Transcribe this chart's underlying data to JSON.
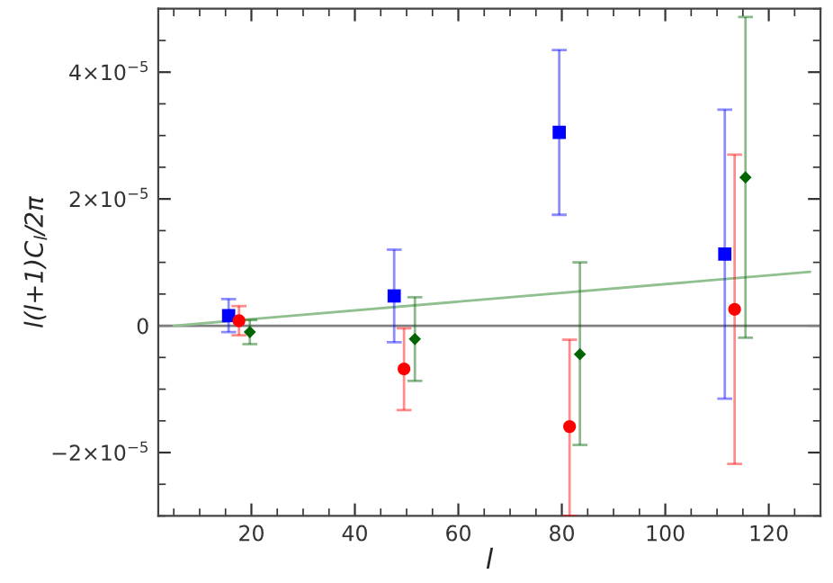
{
  "chart_data": {
    "type": "scatter",
    "xlabel": "l",
    "ylabel": "l(l+1)C$_{l}$/2π",
    "xlim": [
      2,
      130
    ],
    "xticks": [
      20,
      40,
      60,
      80,
      100,
      120
    ],
    "ylim": [
      -3e-05,
      5e-05
    ],
    "yticks": [
      {
        "value": -2e-05,
        "label": "−2×10$^{−5}$"
      },
      {
        "value": 0,
        "label": "0"
      },
      {
        "value": 2e-05,
        "label": "2×10$^{−5}$"
      },
      {
        "value": 4e-05,
        "label": "4×10$^{−5}$"
      }
    ],
    "ref_lines": [
      {
        "axis": "y",
        "value": 0,
        "color": "#808080"
      }
    ],
    "series": [
      {
        "color": "#0000ff",
        "marker": "square",
        "x": [
          15.6,
          47.6,
          79.5,
          111.5
        ],
        "values": [
          1.6e-06,
          4.7e-06,
          3.05e-05,
          1.13e-05
        ],
        "errors": [
          [
            -1e-06,
            4.2e-06
          ],
          [
            -2.6e-06,
            1.2e-05
          ],
          [
            1.75e-05,
            4.35e-05
          ],
          [
            -1.15e-05,
            3.41e-05
          ]
        ]
      },
      {
        "color": "#ff0000",
        "marker": "circle",
        "x": [
          17.6,
          49.5,
          81.5,
          113.4
        ],
        "values": [
          8e-07,
          -6.8e-06,
          -1.59e-05,
          2.6e-06
        ],
        "errors": [
          [
            -1.5e-06,
            3.1e-06
          ],
          [
            -1.33e-05,
            -4e-07
          ],
          [
            -3e-05,
            -2.2e-06
          ],
          [
            -2.18e-05,
            2.7e-05
          ]
        ]
      },
      {
        "color": "#006400",
        "marker": "diamond",
        "x": [
          19.7,
          51.6,
          83.5,
          115.5
        ],
        "values": [
          -1e-06,
          -2.1e-06,
          -4.5e-06,
          2.34e-05
        ],
        "errors": [
          [
            -2.9e-06,
            9e-07
          ],
          [
            -8.7e-06,
            4.5e-06
          ],
          [
            -1.88e-05,
            1e-05
          ],
          [
            -1.9e-06,
            4.87e-05
          ]
        ]
      },
      {
        "type": "line",
        "color": "#90c090",
        "x": [
          5,
          128
        ],
        "values": [
          0,
          8.5e-06
        ]
      }
    ]
  }
}
